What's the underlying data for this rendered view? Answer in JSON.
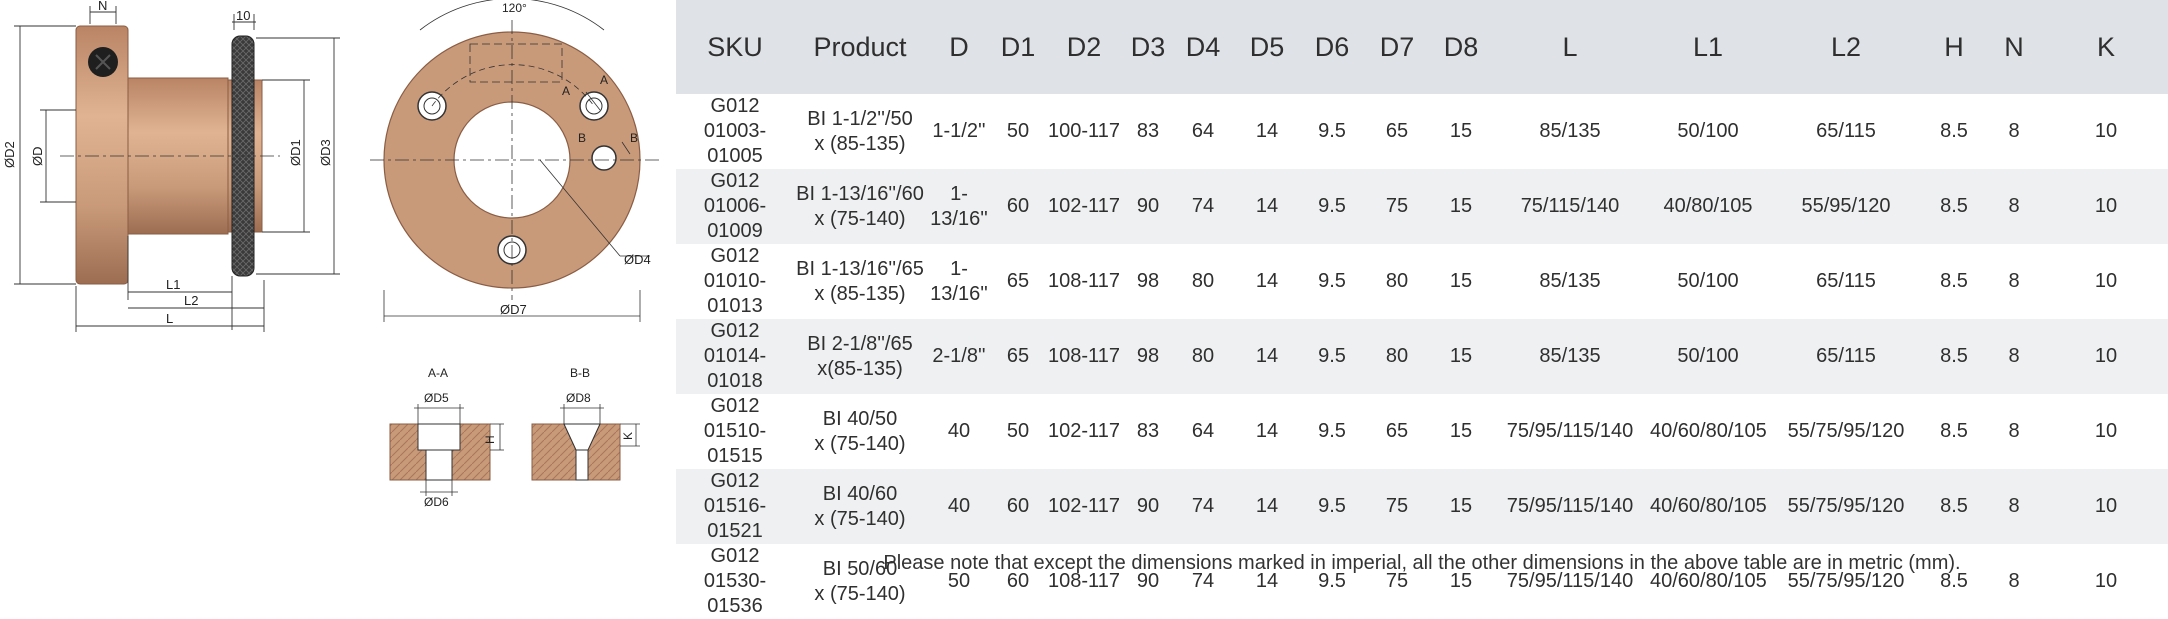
{
  "drawing": {
    "side_view": {
      "labels": {
        "n": "N",
        "d2": "ØD2",
        "d": "ØD",
        "d1": "ØD1",
        "d3": "ØD3",
        "l1": "L1",
        "l2": "L2",
        "l": "L",
        "top_dim": "10"
      }
    },
    "front_view": {
      "labels": {
        "angle": "120°",
        "a": "A",
        "b1": "B",
        "b2": "B",
        "a2": "A",
        "d4": "ØD4",
        "d7": "ØD7"
      }
    },
    "section_aa": {
      "title": "A-A",
      "d5": "ØD5",
      "d6": "ØD6",
      "h": "H"
    },
    "section_bb": {
      "title": "B-B",
      "d8": "ØD8",
      "k": "K"
    },
    "colors": {
      "bronze": "#c99a79",
      "bronze_dark": "#a8765a",
      "knurl": "#3a3a3a",
      "line": "#333333"
    }
  },
  "table": {
    "headers": [
      "SKU",
      "Product",
      "D",
      "D1",
      "D2",
      "D3",
      "D4",
      "D5",
      "D6",
      "D7",
      "D8",
      "L",
      "L1",
      "L2",
      "H",
      "N",
      "K"
    ],
    "rows": [
      [
        "G012\n01003-01005",
        "BI 1-1/2''/50\nx (85-135)",
        "1-1/2''",
        "50",
        "100-117",
        "83",
        "64",
        "14",
        "9.5",
        "65",
        "15",
        "85/135",
        "50/100",
        "65/115",
        "8.5",
        "8",
        "10"
      ],
      [
        "G012\n01006-01009",
        "BI 1-13/16''/60\nx (75-140)",
        "1-13/16''",
        "60",
        "102-117",
        "90",
        "74",
        "14",
        "9.5",
        "75",
        "15",
        "75/115/140",
        "40/80/105",
        "55/95/120",
        "8.5",
        "8",
        "10"
      ],
      [
        "G012\n01010-01013",
        "BI 1-13/16''/65\nx (85-135)",
        "1-13/16''",
        "65",
        "108-117",
        "98",
        "80",
        "14",
        "9.5",
        "80",
        "15",
        "85/135",
        "50/100",
        "65/115",
        "8.5",
        "8",
        "10"
      ],
      [
        "G012\n01014-01018",
        "BI 2-1/8''/65\nx(85-135)",
        "2-1/8''",
        "65",
        "108-117",
        "98",
        "80",
        "14",
        "9.5",
        "80",
        "15",
        "85/135",
        "50/100",
        "65/115",
        "8.5",
        "8",
        "10"
      ],
      [
        "G012\n01510-01515",
        "BI 40/50\nx (75-140)",
        "40",
        "50",
        "102-117",
        "83",
        "64",
        "14",
        "9.5",
        "65",
        "15",
        "75/95/115/140",
        "40/60/80/105",
        "55/75/95/120",
        "8.5",
        "8",
        "10"
      ],
      [
        "G012\n01516-01521",
        "BI 40/60\nx (75-140)",
        "40",
        "60",
        "102-117",
        "90",
        "74",
        "14",
        "9.5",
        "75",
        "15",
        "75/95/115/140",
        "40/60/80/105",
        "55/75/95/120",
        "8.5",
        "8",
        "10"
      ],
      [
        "G012\n01530-01536",
        "BI 50/60\nx (75-140)",
        "50",
        "60",
        "108-117",
        "90",
        "74",
        "14",
        "9.5",
        "75",
        "15",
        "75/95/115/140",
        "40/60/80/105",
        "55/75/95/120",
        "8.5",
        "8",
        "10"
      ]
    ]
  },
  "note": "Please note that except the dimensions marked in imperial, all the other dimensions in the above table are in metric (mm)."
}
